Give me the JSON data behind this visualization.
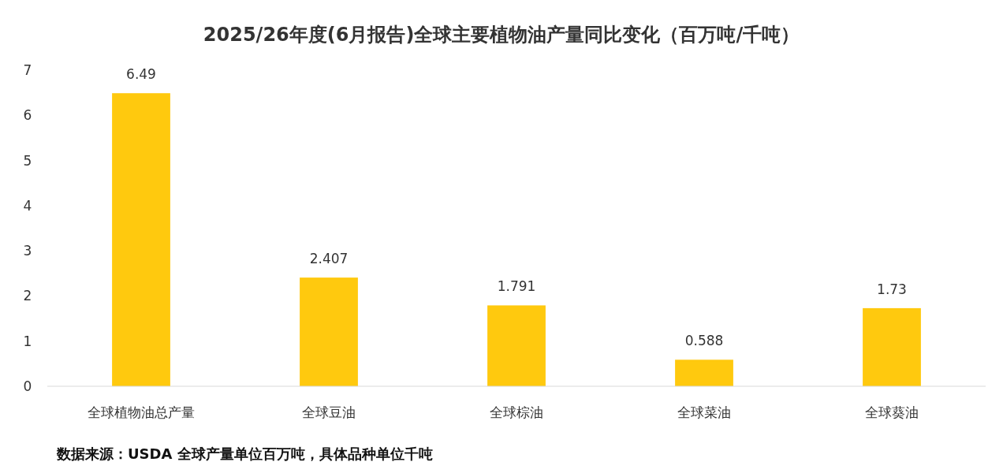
{
  "chart_data": {
    "type": "bar",
    "title": "2025/26年度(6月报告)全球主要植物油产量同比变化（百万吨/千吨）",
    "categories": [
      "全球植物油总产量",
      "全球豆油",
      "全球棕油",
      "全球菜油",
      "全球葵油"
    ],
    "values": [
      6.49,
      2.407,
      1.791,
      0.588,
      1.73
    ],
    "color": "#ffc90e",
    "data_labels": true,
    "ylim": [
      0,
      7
    ],
    "yticks": [
      0,
      1,
      2,
      3,
      4,
      5,
      6,
      7
    ],
    "grid": false,
    "annotations": [
      "数据来源：USDA 全球产量单位百万吨，具体品种单位千吨"
    ]
  }
}
